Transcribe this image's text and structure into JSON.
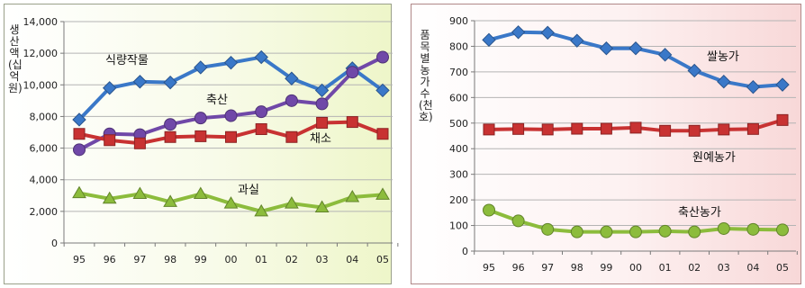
{
  "chart_data": [
    {
      "type": "line",
      "ylabel": "생산액(십억원)",
      "ylim": [
        0,
        14000
      ],
      "yticks": [
        "0",
        "2,000",
        "4,000",
        "6,000",
        "8,000",
        "10,000",
        "12,000",
        "14,000"
      ],
      "categories": [
        "95",
        "96",
        "97",
        "98",
        "99",
        "00",
        "01",
        "02",
        "03",
        "04",
        "05"
      ],
      "grid": true,
      "series": [
        {
          "name": "식량작물",
          "color": "#3a78c8",
          "marker": "diamond",
          "values": [
            7800,
            9800,
            10200,
            10150,
            11100,
            11400,
            11750,
            10400,
            9650,
            11050,
            9650
          ]
        },
        {
          "name": "축산",
          "color": "#7048a8",
          "marker": "circle",
          "values": [
            5900,
            6900,
            6850,
            7500,
            7900,
            8050,
            8300,
            9000,
            8800,
            10800,
            11750
          ]
        },
        {
          "name": "채소",
          "color": "#c83232",
          "marker": "square",
          "values": [
            6900,
            6500,
            6300,
            6700,
            6750,
            6700,
            7200,
            6700,
            7600,
            7650,
            6900
          ]
        },
        {
          "name": "과실",
          "color": "#8cbc3c",
          "marker": "triangle",
          "values": [
            3150,
            2800,
            3100,
            2600,
            3100,
            2500,
            2000,
            2500,
            2250,
            2900,
            3050
          ]
        }
      ]
    },
    {
      "type": "line",
      "ylabel": "품목별 농가수(천호)",
      "ylim": [
        0,
        900
      ],
      "yticks": [
        "0",
        "100",
        "200",
        "300",
        "400",
        "500",
        "600",
        "700",
        "800",
        "900"
      ],
      "categories": [
        "95",
        "96",
        "97",
        "98",
        "99",
        "00",
        "01",
        "02",
        "03",
        "04",
        "05"
      ],
      "grid": true,
      "series": [
        {
          "name": "쌀농가",
          "color": "#3a78c8",
          "marker": "diamond",
          "values": [
            825,
            855,
            853,
            822,
            792,
            792,
            767,
            705,
            662,
            641,
            650
          ]
        },
        {
          "name": "원예농가",
          "color": "#c83232",
          "marker": "square",
          "values": [
            475,
            477,
            475,
            478,
            478,
            482,
            470,
            470,
            475,
            477,
            512
          ]
        },
        {
          "name": "축산농가",
          "color": "#8cbc3c",
          "marker": "circle",
          "values": [
            160,
            118,
            85,
            75,
            75,
            75,
            78,
            75,
            88,
            85,
            83
          ]
        }
      ]
    }
  ]
}
